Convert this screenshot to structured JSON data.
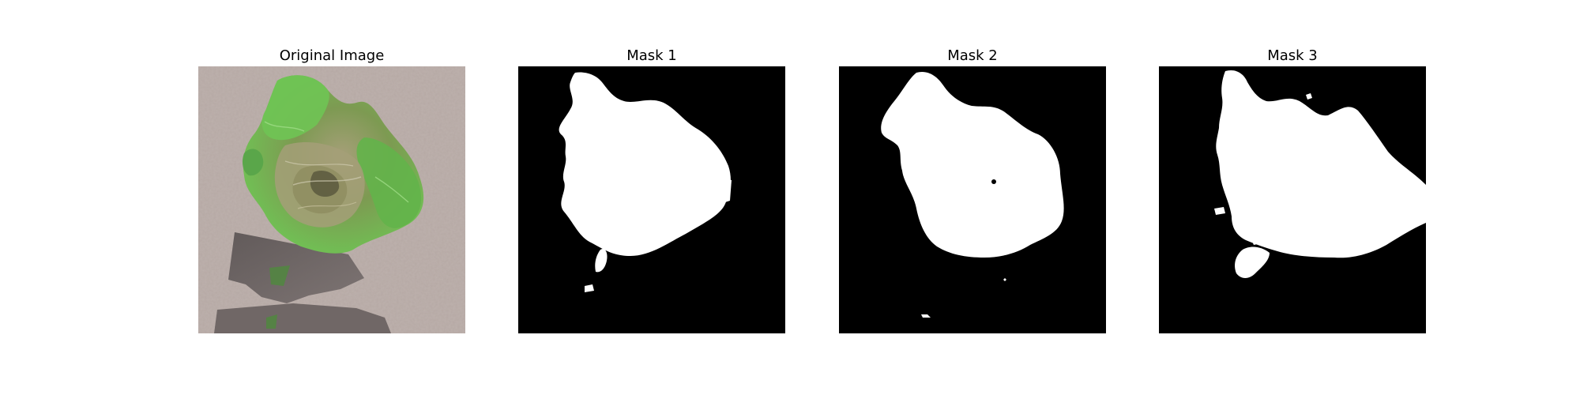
{
  "figure": {
    "panels": [
      {
        "title": "Original Image"
      },
      {
        "title": "Mask 1"
      },
      {
        "title": "Mask 2"
      },
      {
        "title": "Mask 3"
      }
    ],
    "colors": {
      "background": "#ffffff",
      "mask_fill": "#000000",
      "mask_foreground": "#ffffff",
      "carpet": "#bdb1ad",
      "leaf_bright": "#6fc454",
      "leaf_dark": "#3f8a3a",
      "leaf_dry": "#a59f78",
      "shadow": "#6b6362"
    }
  }
}
